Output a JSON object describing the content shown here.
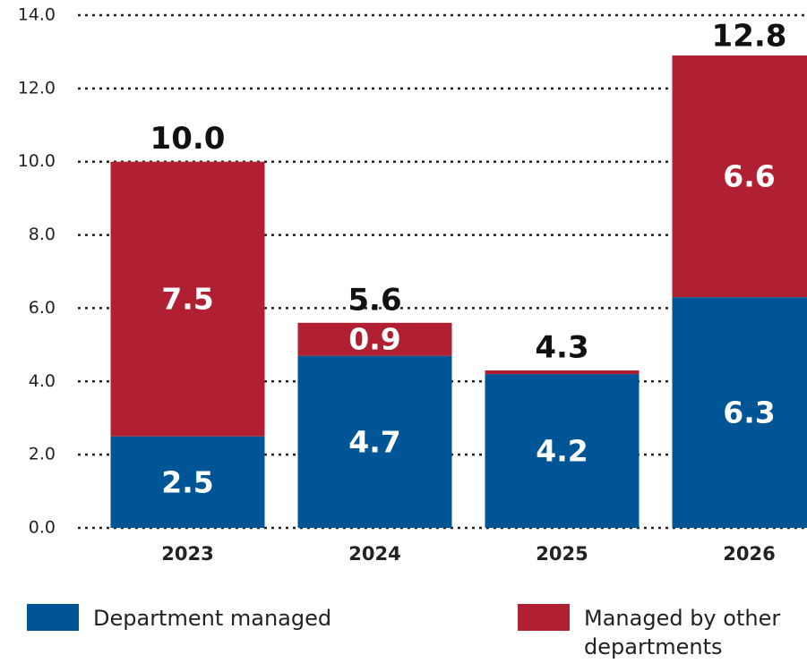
{
  "chart_data": {
    "type": "stacked_bar",
    "categories": [
      "2023",
      "2024",
      "2025",
      "2026"
    ],
    "series": [
      {
        "name": "Department managed",
        "color": "#005596",
        "values": [
          2.5,
          4.7,
          4.2,
          6.3
        ]
      },
      {
        "name": "Managed by other departments",
        "color": "#b01f32",
        "values": [
          7.5,
          0.9,
          0.1,
          6.6
        ],
        "value_labels": [
          "7.5",
          "0.9",
          null,
          "6.6"
        ]
      }
    ],
    "totals": [
      10.0,
      5.6,
      4.3,
      12.8
    ],
    "total_labels": [
      "10.0",
      "5.6",
      "4.3",
      "12.8"
    ],
    "ylim": [
      0,
      14
    ],
    "yticks": [
      {
        "value": 0,
        "label": "0.0"
      },
      {
        "value": 2,
        "label": "2.0"
      },
      {
        "value": 4,
        "label": "4.0"
      },
      {
        "value": 6,
        "label": "6.0"
      },
      {
        "value": 8,
        "label": "8.0"
      },
      {
        "value": 10,
        "label": "10.0"
      },
      {
        "value": 12,
        "label": "12.0"
      },
      {
        "value": 14,
        "label": "14.0"
      }
    ],
    "grid": true,
    "legend": "bottom"
  }
}
